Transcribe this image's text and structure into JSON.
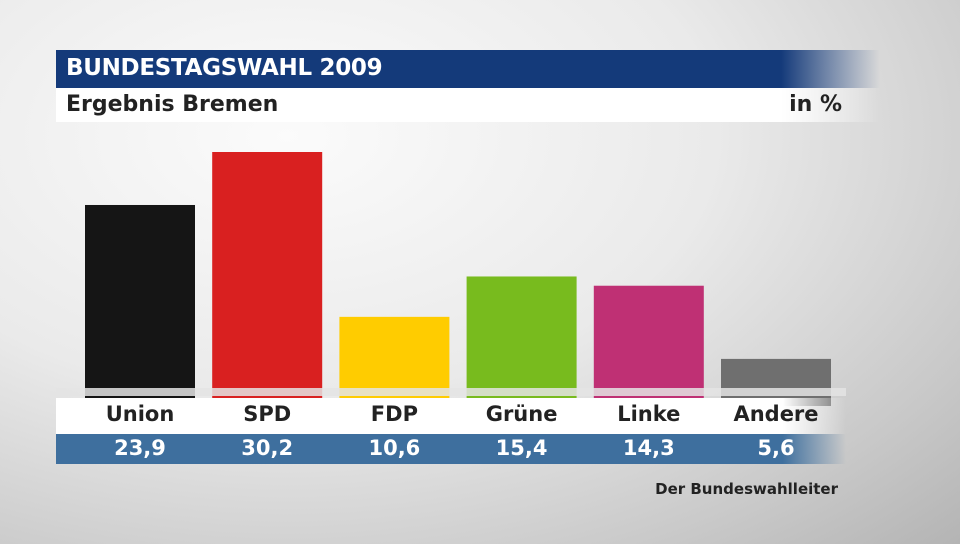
{
  "header": {
    "title": "BUNDESTAGSWAHL 2009",
    "subtitle": "Ergebnis Bremen",
    "unit": "in %"
  },
  "source": "Der Bundeswahlleiter",
  "chart_data": {
    "type": "bar",
    "title": "BUNDESTAGSWAHL 2009",
    "subtitle": "Ergebnis Bremen",
    "ylabel": "in %",
    "categories": [
      "Union",
      "SPD",
      "FDP",
      "Grüne",
      "Linke",
      "Andere"
    ],
    "values": [
      23.9,
      30.2,
      10.6,
      15.4,
      14.3,
      5.6
    ],
    "value_labels": [
      "23,9",
      "30,2",
      "10,6",
      "15,4",
      "14,3",
      "5,6"
    ],
    "colors": [
      "#151515",
      "#d92020",
      "#ffcc00",
      "#78bb1e",
      "#bf3074",
      "#6f6f6f"
    ],
    "ylim": [
      0,
      30.2
    ]
  }
}
